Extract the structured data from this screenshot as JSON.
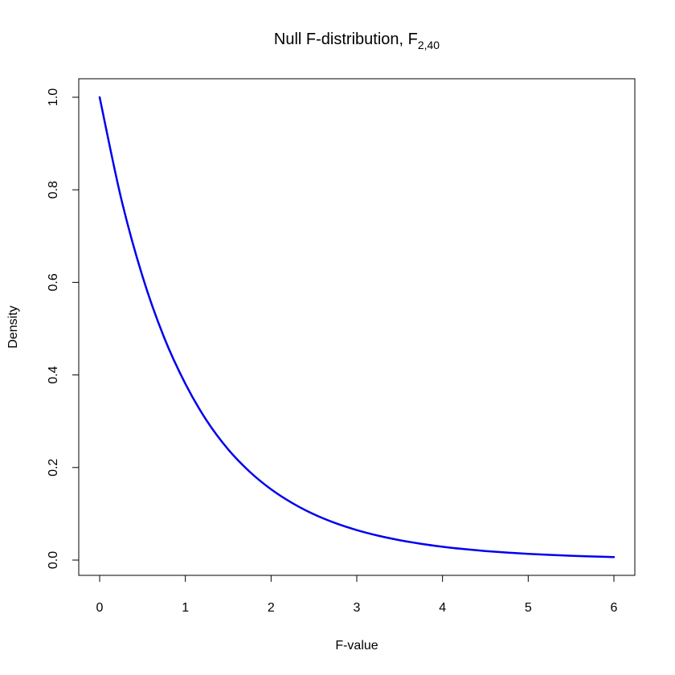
{
  "chart_data": {
    "type": "line",
    "title": {
      "main": "Null F-distribution,  F",
      "subscript": "2,40"
    },
    "xlabel": "F-value",
    "ylabel": "Density",
    "xlim": [
      0,
      6
    ],
    "ylim": [
      0,
      1
    ],
    "x_ticks": [
      0,
      1,
      2,
      3,
      4,
      5,
      6
    ],
    "x_tick_labels": [
      "0",
      "1",
      "2",
      "3",
      "4",
      "5",
      "6"
    ],
    "y_ticks": [
      0,
      0.2,
      0.4,
      0.6,
      0.8,
      1.0
    ],
    "y_tick_labels": [
      "0.0",
      "0.2",
      "0.4",
      "0.6",
      "0.8",
      "1.0"
    ],
    "grid": false,
    "legend": "none",
    "series": [
      {
        "color": "#0000ee",
        "x": [
          0,
          0.25,
          0.5,
          0.75,
          1,
          1.25,
          1.5,
          1.75,
          2,
          2.25,
          2.5,
          2.75,
          3,
          3.25,
          3.5,
          3.75,
          4,
          4.25,
          4.5,
          4.75,
          5,
          5.25,
          5.5,
          5.75,
          6
        ],
        "y": [
          1.0,
          0.782,
          0.613,
          0.482,
          0.381,
          0.301,
          0.239,
          0.191,
          0.153,
          0.123,
          0.0989,
          0.0799,
          0.0648,
          0.0527,
          0.043,
          0.0352,
          0.0289,
          0.0238,
          0.0196,
          0.0162,
          0.0135,
          0.0112,
          0.00934,
          0.0078,
          0.00653
        ]
      }
    ]
  }
}
